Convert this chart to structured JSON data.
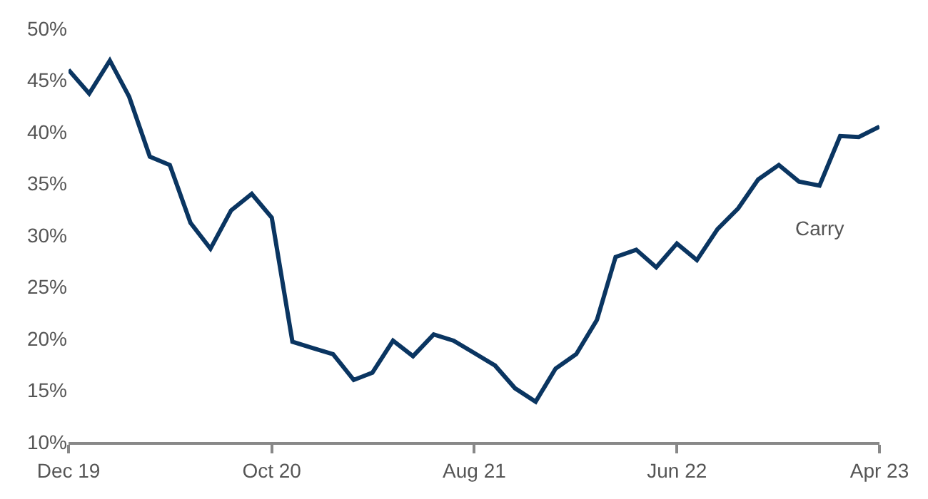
{
  "chart_data": {
    "type": "line",
    "x": [
      "2019-12",
      "2020-01",
      "2020-02",
      "2020-03",
      "2020-04",
      "2020-05",
      "2020-06",
      "2020-07",
      "2020-08",
      "2020-09",
      "2020-10",
      "2020-11",
      "2020-12",
      "2021-01",
      "2021-02",
      "2021-03",
      "2021-04",
      "2021-05",
      "2021-06",
      "2021-07",
      "2021-08",
      "2021-09",
      "2021-10",
      "2021-11",
      "2021-12",
      "2022-01",
      "2022-02",
      "2022-03",
      "2022-04",
      "2022-05",
      "2022-06",
      "2022-07",
      "2022-08",
      "2022-09",
      "2022-10",
      "2022-11",
      "2022-12",
      "2023-01",
      "2023-02",
      "2023-03",
      "2023-04"
    ],
    "series": [
      {
        "name": "Carry",
        "color": "#0a3561",
        "values": [
          46.0,
          43.7,
          46.9,
          43.4,
          37.6,
          36.8,
          31.2,
          28.7,
          32.4,
          34.0,
          31.7,
          19.7,
          19.1,
          18.5,
          16.0,
          16.7,
          19.8,
          18.3,
          20.4,
          19.8,
          18.6,
          17.4,
          15.2,
          13.9,
          17.1,
          18.5,
          21.8,
          27.9,
          28.6,
          26.9,
          29.2,
          27.6,
          30.6,
          32.6,
          35.4,
          36.8,
          35.2,
          34.8,
          39.6,
          39.5,
          40.5
        ]
      }
    ],
    "xlim": [
      "2019-12",
      "2023-04"
    ],
    "xticks": [
      {
        "value": "2019-12",
        "label": "Dec 19"
      },
      {
        "value": "2020-10",
        "label": "Oct 20"
      },
      {
        "value": "2021-08",
        "label": "Aug 21"
      },
      {
        "value": "2022-06",
        "label": "Jun 22"
      },
      {
        "value": "2023-04",
        "label": "Apr 23"
      }
    ],
    "ylim": [
      10,
      50
    ],
    "yticks": [
      {
        "value": 10,
        "label": "10%"
      },
      {
        "value": 15,
        "label": "15%"
      },
      {
        "value": 20,
        "label": "20%"
      },
      {
        "value": 25,
        "label": "25%"
      },
      {
        "value": 30,
        "label": "30%"
      },
      {
        "value": 35,
        "label": "35%"
      },
      {
        "value": 40,
        "label": "40%"
      },
      {
        "value": 45,
        "label": "45%"
      },
      {
        "value": 50,
        "label": "50%"
      }
    ],
    "marker": "none",
    "line_style": "solid"
  }
}
